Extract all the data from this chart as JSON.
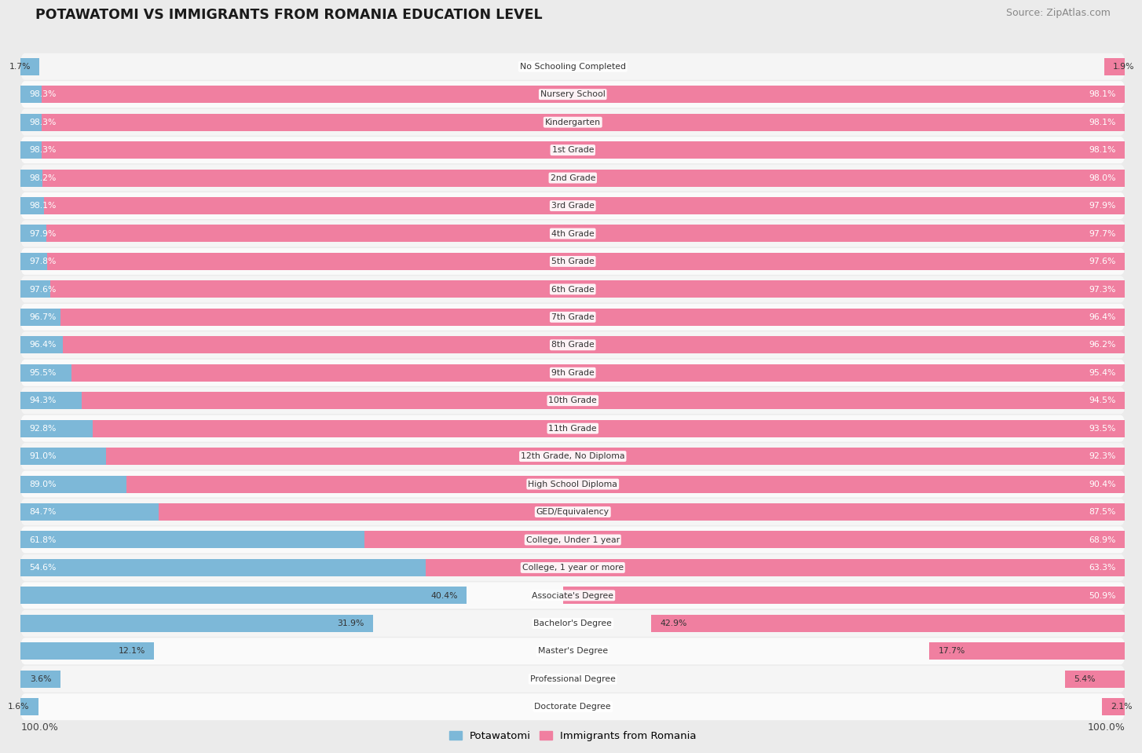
{
  "title": "POTAWATOMI VS IMMIGRANTS FROM ROMANIA EDUCATION LEVEL",
  "source": "Source: ZipAtlas.com",
  "categories": [
    "No Schooling Completed",
    "Nursery School",
    "Kindergarten",
    "1st Grade",
    "2nd Grade",
    "3rd Grade",
    "4th Grade",
    "5th Grade",
    "6th Grade",
    "7th Grade",
    "8th Grade",
    "9th Grade",
    "10th Grade",
    "11th Grade",
    "12th Grade, No Diploma",
    "High School Diploma",
    "GED/Equivalency",
    "College, Under 1 year",
    "College, 1 year or more",
    "Associate's Degree",
    "Bachelor's Degree",
    "Master's Degree",
    "Professional Degree",
    "Doctorate Degree"
  ],
  "potawatomi": [
    1.7,
    98.3,
    98.3,
    98.3,
    98.2,
    98.1,
    97.9,
    97.8,
    97.6,
    96.7,
    96.4,
    95.5,
    94.3,
    92.8,
    91.0,
    89.0,
    84.7,
    61.8,
    54.6,
    40.4,
    31.9,
    12.1,
    3.6,
    1.6
  ],
  "romania": [
    1.9,
    98.1,
    98.1,
    98.1,
    98.0,
    97.9,
    97.7,
    97.6,
    97.3,
    96.4,
    96.2,
    95.4,
    94.5,
    93.5,
    92.3,
    90.4,
    87.5,
    68.9,
    63.3,
    50.9,
    42.9,
    17.7,
    5.4,
    2.1
  ],
  "potawatomi_color": "#7db8d8",
  "romania_color": "#f07fa0",
  "bg_color": "#ebebeb",
  "row_bg_even": "#f5f5f5",
  "row_bg_odd": "#fafafa",
  "label_color": "#333333",
  "value_color": "#333333",
  "title_color": "#1a1a1a",
  "source_color": "#888888",
  "legend_potawatomi": "Potawatomi",
  "legend_romania": "Immigrants from Romania",
  "max_val": 100.0
}
